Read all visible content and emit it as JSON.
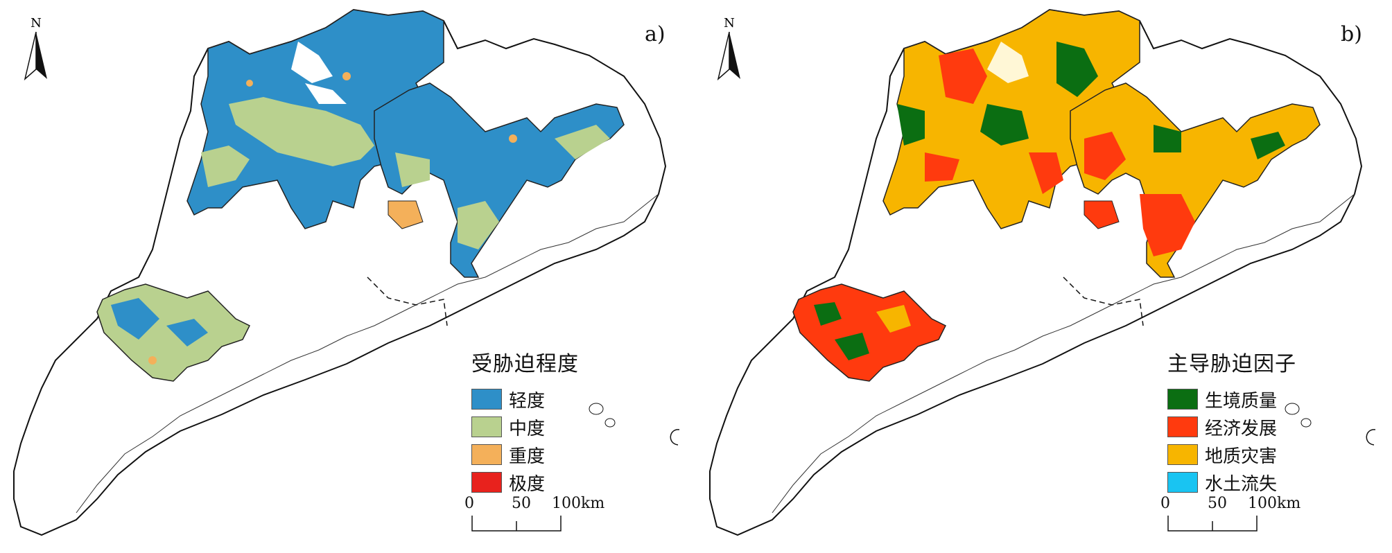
{
  "panels": [
    {
      "id": "a",
      "label": "a)",
      "north_label": "N",
      "legend": {
        "title": "受胁迫程度",
        "items": [
          {
            "label": "轻度",
            "color": "#2E8FC8"
          },
          {
            "label": "中度",
            "color": "#B9D18F"
          },
          {
            "label": "重度",
            "color": "#F4B05A"
          },
          {
            "label": "极度",
            "color": "#E8221D"
          }
        ]
      },
      "scale": {
        "ticks": [
          "0",
          "50",
          "100"
        ],
        "unit": "km"
      }
    },
    {
      "id": "b",
      "label": "b)",
      "north_label": "N",
      "legend": {
        "title": "主导胁迫因子",
        "items": [
          {
            "label": "生境质量",
            "color": "#0B6E12"
          },
          {
            "label": "经济发展",
            "color": "#FF3A0E"
          },
          {
            "label": "地质灾害",
            "color": "#F7B500"
          },
          {
            "label": "水土流失",
            "color": "#19C4F2"
          }
        ]
      },
      "scale": {
        "ticks": [
          "0",
          "50",
          "100"
        ],
        "unit": "km"
      }
    }
  ]
}
